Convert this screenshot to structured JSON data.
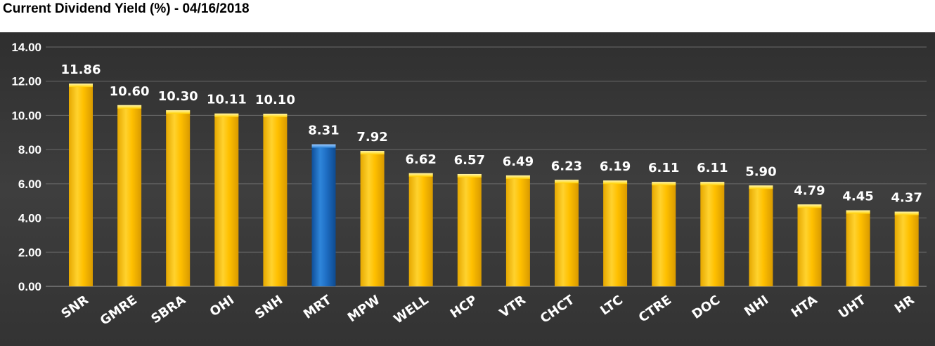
{
  "chart_data": {
    "type": "bar",
    "title": "Current Dividend Yield (%) - 04/16/2018",
    "xlabel": "",
    "ylabel": "",
    "ylim": [
      0,
      14
    ],
    "yticks": [
      "0.00",
      "2.00",
      "4.00",
      "6.00",
      "8.00",
      "10.00",
      "12.00",
      "14.00"
    ],
    "grid": true,
    "legend": "none",
    "categories": [
      "SNR",
      "GMRE",
      "SBRA",
      "OHI",
      "SNH",
      "MRT",
      "MPW",
      "WELL",
      "HCP",
      "VTR",
      "CHCT",
      "LTC",
      "CTRE",
      "DOC",
      "NHI",
      "HTA",
      "UHT",
      "HR"
    ],
    "values": [
      11.86,
      10.6,
      10.3,
      10.11,
      10.1,
      8.31,
      7.92,
      6.62,
      6.57,
      6.49,
      6.23,
      6.19,
      6.11,
      6.11,
      5.9,
      4.79,
      4.45,
      4.37
    ],
    "data_labels": [
      "11.86",
      "10.60",
      "10.30",
      "10.11",
      "10.10",
      "8.31",
      "7.92",
      "6.62",
      "6.57",
      "6.49",
      "6.23",
      "6.19",
      "6.11",
      "6.11",
      "5.90",
      "4.79",
      "4.45",
      "4.37"
    ],
    "highlight_category": "MRT",
    "colors": {
      "bar": "#FFC000",
      "highlight": "#1F6FC5",
      "background": "#4A4A4A",
      "gridline": "#6A6A6A",
      "text": "#FFFFFF"
    }
  }
}
